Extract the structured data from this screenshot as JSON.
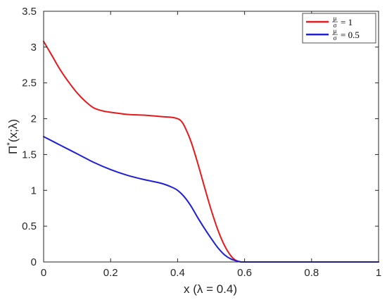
{
  "chart_data": {
    "type": "line",
    "xlabel": "x (λ = 0.4)",
    "ylabel": "Π*(x;λ)",
    "xlim": [
      0,
      1
    ],
    "ylim": [
      0,
      3.5
    ],
    "xticks": [
      0,
      0.2,
      0.4,
      0.6,
      0.8,
      1
    ],
    "yticks": [
      0,
      0.5,
      1,
      1.5,
      2,
      2.5,
      3,
      3.5
    ],
    "xtick_labels": [
      "0",
      "0.2",
      "0.4",
      "0.6",
      "0.8",
      "1"
    ],
    "ytick_labels": [
      "0",
      "0.5",
      "1",
      "1.5",
      "2",
      "2.5",
      "3",
      "3.5"
    ],
    "grid": false,
    "legend_position": "top-right",
    "series": [
      {
        "name": "μ/σ = 1",
        "legend_frac_num": "μ",
        "legend_frac_den": "σ",
        "legend_rest": "= 1",
        "color": "#e41a1c",
        "x": [
          0,
          0.025,
          0.05,
          0.075,
          0.1,
          0.125,
          0.15,
          0.175,
          0.2,
          0.25,
          0.3,
          0.35,
          0.38,
          0.4,
          0.41,
          0.42,
          0.44,
          0.46,
          0.48,
          0.5,
          0.52,
          0.54,
          0.56,
          0.575,
          0.59,
          0.6,
          0.7,
          0.8,
          0.9,
          1.0
        ],
        "y": [
          3.08,
          2.88,
          2.68,
          2.51,
          2.36,
          2.24,
          2.15,
          2.11,
          2.09,
          2.06,
          2.05,
          2.03,
          2.02,
          2.0,
          1.97,
          1.9,
          1.68,
          1.38,
          1.05,
          0.73,
          0.45,
          0.23,
          0.08,
          0.02,
          0.0,
          0.0,
          0.0,
          0.0,
          0.0,
          0.0
        ]
      },
      {
        "name": "μ/σ = 0.5",
        "legend_frac_num": "μ",
        "legend_frac_den": "σ",
        "legend_rest": "= 0.5",
        "color": "#1f1fd6",
        "x": [
          0,
          0.05,
          0.1,
          0.15,
          0.2,
          0.25,
          0.3,
          0.35,
          0.38,
          0.4,
          0.42,
          0.44,
          0.46,
          0.48,
          0.5,
          0.52,
          0.54,
          0.56,
          0.58,
          0.59,
          0.6,
          0.7,
          0.8,
          0.9,
          1.0
        ],
        "y": [
          1.75,
          1.63,
          1.51,
          1.39,
          1.29,
          1.21,
          1.15,
          1.1,
          1.05,
          1.0,
          0.91,
          0.78,
          0.62,
          0.47,
          0.33,
          0.2,
          0.1,
          0.04,
          0.01,
          0.0,
          0.0,
          0.0,
          0.0,
          0.0,
          0.0
        ]
      }
    ]
  }
}
